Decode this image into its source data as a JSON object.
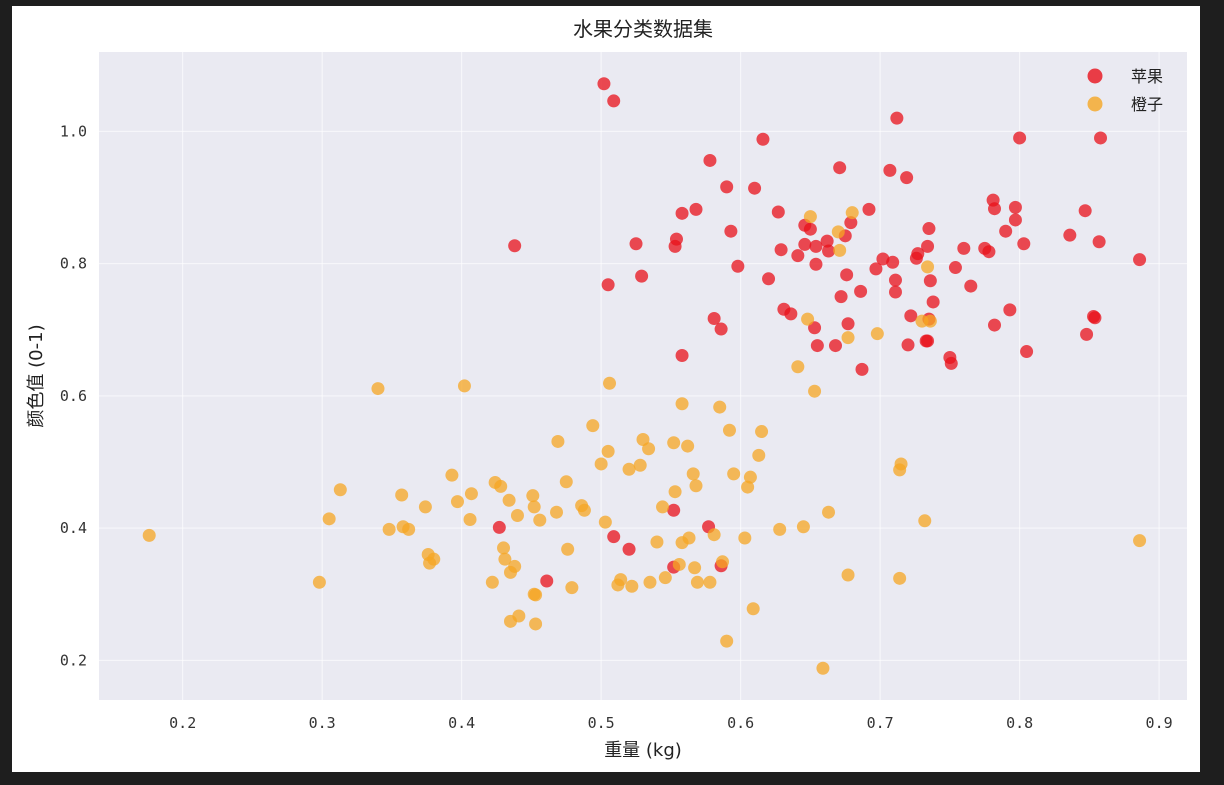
{
  "chart_data": {
    "type": "scatter",
    "title": "水果分类数据集",
    "xlabel": "重量 (kg)",
    "ylabel": "颜色值 (0-1)",
    "xlim": [
      0.14,
      0.92
    ],
    "ylim": [
      0.14,
      1.12
    ],
    "xticks": [
      0.2,
      0.3,
      0.4,
      0.5,
      0.6,
      0.7,
      0.8,
      0.9
    ],
    "yticks": [
      0.2,
      0.4,
      0.6,
      0.8,
      1.0
    ],
    "grid": true,
    "legend_position": "top-right",
    "series": [
      {
        "name": "苹果",
        "color": "#e8101a",
        "points": [
          [
            0.502,
            1.072
          ],
          [
            0.509,
            1.046
          ],
          [
            0.712,
            1.02
          ],
          [
            0.616,
            0.988
          ],
          [
            0.8,
            0.99
          ],
          [
            0.858,
            0.99
          ],
          [
            0.578,
            0.956
          ],
          [
            0.671,
            0.945
          ],
          [
            0.707,
            0.941
          ],
          [
            0.719,
            0.93
          ],
          [
            0.59,
            0.916
          ],
          [
            0.61,
            0.914
          ],
          [
            0.781,
            0.896
          ],
          [
            0.692,
            0.882
          ],
          [
            0.847,
            0.88
          ],
          [
            0.568,
            0.882
          ],
          [
            0.558,
            0.876
          ],
          [
            0.627,
            0.878
          ],
          [
            0.797,
            0.885
          ],
          [
            0.782,
            0.883
          ],
          [
            0.646,
            0.858
          ],
          [
            0.679,
            0.862
          ],
          [
            0.593,
            0.849
          ],
          [
            0.65,
            0.852
          ],
          [
            0.735,
            0.853
          ],
          [
            0.79,
            0.849
          ],
          [
            0.797,
            0.866
          ],
          [
            0.836,
            0.843
          ],
          [
            0.438,
            0.827
          ],
          [
            0.525,
            0.83
          ],
          [
            0.554,
            0.837
          ],
          [
            0.553,
            0.826
          ],
          [
            0.662,
            0.834
          ],
          [
            0.675,
            0.842
          ],
          [
            0.654,
            0.826
          ],
          [
            0.646,
            0.829
          ],
          [
            0.629,
            0.821
          ],
          [
            0.641,
            0.812
          ],
          [
            0.663,
            0.819
          ],
          [
            0.734,
            0.826
          ],
          [
            0.76,
            0.823
          ],
          [
            0.775,
            0.823
          ],
          [
            0.778,
            0.818
          ],
          [
            0.803,
            0.83
          ],
          [
            0.857,
            0.833
          ],
          [
            0.886,
            0.806
          ],
          [
            0.726,
            0.808
          ],
          [
            0.727,
            0.815
          ],
          [
            0.702,
            0.807
          ],
          [
            0.709,
            0.802
          ],
          [
            0.697,
            0.792
          ],
          [
            0.598,
            0.796
          ],
          [
            0.529,
            0.781
          ],
          [
            0.62,
            0.777
          ],
          [
            0.654,
            0.799
          ],
          [
            0.676,
            0.783
          ],
          [
            0.711,
            0.775
          ],
          [
            0.736,
            0.774
          ],
          [
            0.754,
            0.794
          ],
          [
            0.505,
            0.768
          ],
          [
            0.686,
            0.758
          ],
          [
            0.672,
            0.75
          ],
          [
            0.711,
            0.757
          ],
          [
            0.765,
            0.766
          ],
          [
            0.738,
            0.742
          ],
          [
            0.631,
            0.731
          ],
          [
            0.636,
            0.724
          ],
          [
            0.581,
            0.717
          ],
          [
            0.677,
            0.709
          ],
          [
            0.653,
            0.703
          ],
          [
            0.586,
            0.701
          ],
          [
            0.722,
            0.721
          ],
          [
            0.735,
            0.716
          ],
          [
            0.782,
            0.707
          ],
          [
            0.793,
            0.73
          ],
          [
            0.854,
            0.718
          ],
          [
            0.853,
            0.72
          ],
          [
            0.848,
            0.693
          ],
          [
            0.655,
            0.676
          ],
          [
            0.668,
            0.676
          ],
          [
            0.72,
            0.677
          ],
          [
            0.733,
            0.683
          ],
          [
            0.734,
            0.683
          ],
          [
            0.558,
            0.661
          ],
          [
            0.75,
            0.658
          ],
          [
            0.805,
            0.667
          ],
          [
            0.687,
            0.64
          ],
          [
            0.751,
            0.649
          ],
          [
            0.427,
            0.401
          ],
          [
            0.577,
            0.402
          ],
          [
            0.509,
            0.387
          ],
          [
            0.52,
            0.368
          ],
          [
            0.552,
            0.427
          ],
          [
            0.552,
            0.341
          ],
          [
            0.586,
            0.343
          ],
          [
            0.461,
            0.32
          ]
        ]
      },
      {
        "name": "橙子",
        "color": "#f5a623",
        "points": [
          [
            0.176,
            0.389
          ],
          [
            0.298,
            0.318
          ],
          [
            0.305,
            0.414
          ],
          [
            0.313,
            0.458
          ],
          [
            0.34,
            0.611
          ],
          [
            0.348,
            0.398
          ],
          [
            0.357,
            0.45
          ],
          [
            0.358,
            0.402
          ],
          [
            0.362,
            0.398
          ],
          [
            0.374,
            0.432
          ],
          [
            0.376,
            0.36
          ],
          [
            0.377,
            0.347
          ],
          [
            0.38,
            0.353
          ],
          [
            0.393,
            0.48
          ],
          [
            0.397,
            0.44
          ],
          [
            0.402,
            0.615
          ],
          [
            0.406,
            0.413
          ],
          [
            0.407,
            0.452
          ],
          [
            0.422,
            0.318
          ],
          [
            0.424,
            0.469
          ],
          [
            0.428,
            0.463
          ],
          [
            0.43,
            0.37
          ],
          [
            0.431,
            0.353
          ],
          [
            0.434,
            0.442
          ],
          [
            0.435,
            0.333
          ],
          [
            0.435,
            0.259
          ],
          [
            0.438,
            0.342
          ],
          [
            0.44,
            0.419
          ],
          [
            0.441,
            0.267
          ],
          [
            0.451,
            0.449
          ],
          [
            0.452,
            0.432
          ],
          [
            0.452,
            0.3
          ],
          [
            0.453,
            0.299
          ],
          [
            0.453,
            0.255
          ],
          [
            0.456,
            0.412
          ],
          [
            0.468,
            0.424
          ],
          [
            0.469,
            0.531
          ],
          [
            0.475,
            0.47
          ],
          [
            0.476,
            0.368
          ],
          [
            0.479,
            0.31
          ],
          [
            0.486,
            0.434
          ],
          [
            0.488,
            0.427
          ],
          [
            0.494,
            0.555
          ],
          [
            0.5,
            0.497
          ],
          [
            0.503,
            0.409
          ],
          [
            0.505,
            0.516
          ],
          [
            0.506,
            0.619
          ],
          [
            0.512,
            0.314
          ],
          [
            0.514,
            0.322
          ],
          [
            0.52,
            0.489
          ],
          [
            0.522,
            0.312
          ],
          [
            0.528,
            0.495
          ],
          [
            0.53,
            0.534
          ],
          [
            0.534,
            0.52
          ],
          [
            0.535,
            0.318
          ],
          [
            0.54,
            0.379
          ],
          [
            0.544,
            0.432
          ],
          [
            0.546,
            0.325
          ],
          [
            0.552,
            0.529
          ],
          [
            0.553,
            0.455
          ],
          [
            0.556,
            0.345
          ],
          [
            0.558,
            0.378
          ],
          [
            0.558,
            0.588
          ],
          [
            0.562,
            0.524
          ],
          [
            0.563,
            0.385
          ],
          [
            0.566,
            0.482
          ],
          [
            0.567,
            0.34
          ],
          [
            0.568,
            0.464
          ],
          [
            0.569,
            0.318
          ],
          [
            0.578,
            0.318
          ],
          [
            0.581,
            0.39
          ],
          [
            0.585,
            0.583
          ],
          [
            0.587,
            0.349
          ],
          [
            0.59,
            0.229
          ],
          [
            0.592,
            0.548
          ],
          [
            0.595,
            0.482
          ],
          [
            0.603,
            0.385
          ],
          [
            0.605,
            0.462
          ],
          [
            0.607,
            0.477
          ],
          [
            0.609,
            0.278
          ],
          [
            0.613,
            0.51
          ],
          [
            0.615,
            0.546
          ],
          [
            0.628,
            0.398
          ],
          [
            0.641,
            0.644
          ],
          [
            0.645,
            0.402
          ],
          [
            0.648,
            0.716
          ],
          [
            0.65,
            0.871
          ],
          [
            0.653,
            0.607
          ],
          [
            0.659,
            0.188
          ],
          [
            0.663,
            0.424
          ],
          [
            0.67,
            0.848
          ],
          [
            0.671,
            0.82
          ],
          [
            0.677,
            0.329
          ],
          [
            0.677,
            0.688
          ],
          [
            0.68,
            0.877
          ],
          [
            0.698,
            0.694
          ],
          [
            0.714,
            0.488
          ],
          [
            0.714,
            0.324
          ],
          [
            0.715,
            0.497
          ],
          [
            0.73,
            0.713
          ],
          [
            0.732,
            0.411
          ],
          [
            0.734,
            0.795
          ],
          [
            0.736,
            0.713
          ],
          [
            0.886,
            0.381
          ]
        ]
      }
    ]
  }
}
